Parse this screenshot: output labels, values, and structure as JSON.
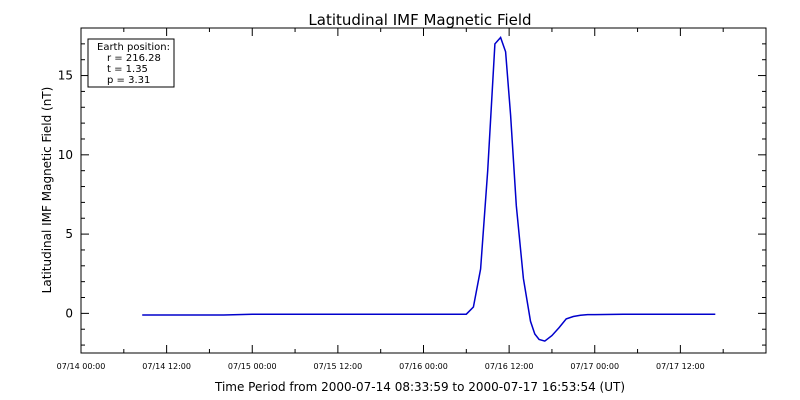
{
  "chart_data": {
    "type": "line",
    "title": "Latitudinal IMF Magnetic Field",
    "xlabel": "Time Period from 2000-07-14 08:33:59 to 2000-07-17 16:53:54 (UT)",
    "ylabel": "Latitudinal IMF Magnetic Field (nT)",
    "x_tick_labels": [
      "07/14 00:00",
      "07/14 12:00",
      "07/15 00:00",
      "07/15 12:00",
      "07/16 00:00",
      "07/16 12:00",
      "07/17 00:00",
      "07/17 12:00"
    ],
    "x_tick_hours": [
      0,
      12,
      24,
      36,
      48,
      60,
      72,
      84
    ],
    "xlim_hours": [
      0,
      96
    ],
    "y_ticks": [
      0,
      5,
      10,
      15
    ],
    "ylim": [
      -2.5,
      18
    ],
    "line_color": "#0000cc",
    "series": [
      {
        "x_hours": [
          8.57,
          12,
          20,
          24,
          36,
          48,
          54,
          55,
          56,
          57,
          58,
          58.8,
          59.5,
          60.2,
          61,
          62,
          63,
          63.6,
          64.2,
          65,
          66,
          67,
          68,
          69,
          70,
          71,
          72,
          76,
          80,
          84,
          88.9
        ],
        "y": [
          -0.1,
          -0.1,
          -0.1,
          -0.05,
          -0.05,
          -0.05,
          -0.05,
          0.4,
          2.8,
          9.0,
          17.0,
          17.4,
          16.5,
          12.5,
          6.8,
          2.2,
          -0.5,
          -1.3,
          -1.65,
          -1.75,
          -1.4,
          -0.9,
          -0.35,
          -0.2,
          -0.12,
          -0.08,
          -0.08,
          -0.05,
          -0.05,
          -0.05,
          -0.05
        ]
      }
    ],
    "legend_lines": [
      "Earth position:",
      "r = 216.28",
      "t = 1.35",
      "p = 3.31"
    ]
  }
}
